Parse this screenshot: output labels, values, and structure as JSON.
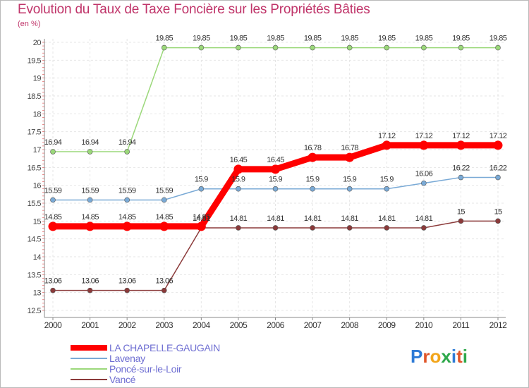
{
  "header": {
    "title": "Evolution du Taux de Taxe Foncière sur les Propriétés Bâties",
    "unit": "(en %)"
  },
  "brand": {
    "logo_letters": [
      "P",
      "r",
      "o",
      "x",
      "i",
      "t",
      "i"
    ],
    "logo_colors": [
      "#2e7bd6",
      "#e0562a",
      "#f2a51a",
      "#2ea84a",
      "#2e7bd6",
      "#e0562a",
      "#2ea84a"
    ]
  },
  "chart_data": {
    "type": "line",
    "title": "Evolution du Taux de Taxe Foncière sur les Propriétés Bâties",
    "ylabel": "(en %)",
    "xlabel": "",
    "ylim": [
      12.5,
      20
    ],
    "yticks": [
      "12.5",
      "13",
      "13.5",
      "14",
      "14.5",
      "15",
      "15.5",
      "16",
      "16.5",
      "17",
      "17.5",
      "18",
      "18.5",
      "19",
      "19.5",
      "20"
    ],
    "categories": [
      "2000",
      "2001",
      "2002",
      "2003",
      "2004",
      "2005",
      "2006",
      "2007",
      "2008",
      "2009",
      "2010",
      "2011",
      "2012"
    ],
    "grid": true,
    "legend_position": "bottom-left",
    "series": [
      {
        "name": "LA CHAPELLE-GAUGAIN",
        "color": "#ff0000",
        "highlight": true,
        "values": [
          14.85,
          14.85,
          14.85,
          14.85,
          14.85,
          16.45,
          16.45,
          16.78,
          16.78,
          17.12,
          17.12,
          17.12,
          17.12
        ],
        "labels": [
          "14.85",
          "14.85",
          "14.85",
          "14.85",
          "14.85",
          "16.45",
          "16.45",
          "16.78",
          "16.78",
          "17.12",
          "17.12",
          "17.12",
          "17.12"
        ]
      },
      {
        "name": "Lavenay",
        "color": "#7aaad6",
        "highlight": false,
        "values": [
          15.59,
          15.59,
          15.59,
          15.59,
          15.9,
          15.9,
          15.9,
          15.9,
          15.9,
          15.9,
          16.06,
          16.22,
          16.22
        ],
        "labels": [
          "15.59",
          "15.59",
          "15.59",
          "15.59",
          "15.9",
          "15.9",
          "15.9",
          "15.9",
          "15.9",
          "15.9",
          "16.06",
          "16.22",
          "16.22"
        ]
      },
      {
        "name": "Poncé-sur-le-Loir",
        "color": "#9bd87a",
        "highlight": false,
        "values": [
          16.94,
          16.94,
          16.94,
          19.85,
          19.85,
          19.85,
          19.85,
          19.85,
          19.85,
          19.85,
          19.85,
          19.85,
          19.85
        ],
        "labels": [
          "16.94",
          "16.94",
          "16.94",
          "19.85",
          "19.85",
          "19.85",
          "19.85",
          "19.85",
          "19.85",
          "19.85",
          "19.85",
          "19.85",
          "19.85"
        ]
      },
      {
        "name": "Vancé",
        "color": "#8b3a3a",
        "highlight": false,
        "values": [
          13.06,
          13.06,
          13.06,
          13.06,
          14.81,
          14.81,
          14.81,
          14.81,
          14.81,
          14.81,
          14.81,
          15,
          15
        ],
        "labels": [
          "13.06",
          "13.06",
          "13.06",
          "13.06",
          "14.81",
          "14.81",
          "14.81",
          "14.81",
          "14.81",
          "14.81",
          "14.81",
          "15",
          "15"
        ]
      }
    ]
  }
}
